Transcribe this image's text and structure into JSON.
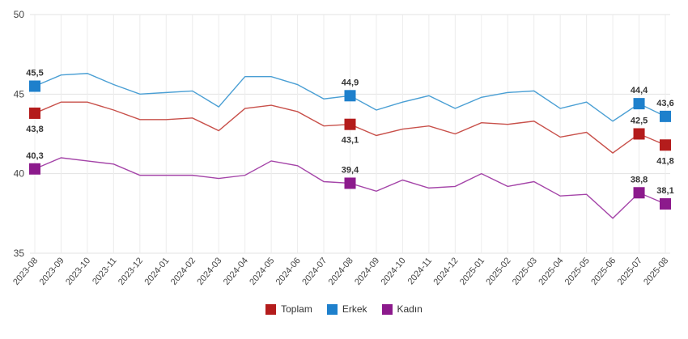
{
  "chart_data": {
    "type": "line",
    "categories": [
      "2023-08",
      "2023-09",
      "2023-10",
      "2023-11",
      "2023-12",
      "2024-01",
      "2024-02",
      "2024-03",
      "2024-04",
      "2024-05",
      "2024-06",
      "2024-07",
      "2024-08",
      "2024-09",
      "2024-10",
      "2024-11",
      "2024-12",
      "2025-01",
      "2025-02",
      "2025-03",
      "2025-04",
      "2025-05",
      "2025-06",
      "2025-07",
      "2025-08"
    ],
    "ylim": [
      35,
      50
    ],
    "yticks": [
      "35",
      "40",
      "45",
      "50"
    ],
    "grid": true,
    "legend_position": "bottom",
    "series": [
      {
        "name": "Toplam",
        "line_color": "#c8504a",
        "marker_color": "#b41c1c",
        "values": [
          43.8,
          44.5,
          44.5,
          44.0,
          43.4,
          43.4,
          43.5,
          42.7,
          44.1,
          44.3,
          43.9,
          43.0,
          43.1,
          42.4,
          42.8,
          43.0,
          42.5,
          43.2,
          43.1,
          43.3,
          42.3,
          42.6,
          41.3,
          42.5,
          41.8
        ],
        "labels": {
          "0": "43,8",
          "12": "43,1",
          "23": "42,5",
          "24": "41,8"
        },
        "label_below": {
          "0": true,
          "12": true,
          "23": false,
          "24": true
        }
      },
      {
        "name": "Erkek",
        "line_color": "#4a9fd4",
        "marker_color": "#1e80cc",
        "values": [
          45.5,
          46.2,
          46.3,
          45.6,
          45.0,
          45.1,
          45.2,
          44.2,
          46.1,
          46.1,
          45.6,
          44.7,
          44.9,
          44.0,
          44.5,
          44.9,
          44.1,
          44.8,
          45.1,
          45.2,
          44.1,
          44.5,
          43.3,
          44.4,
          43.6
        ],
        "labels": {
          "0": "45,5",
          "12": "44,9",
          "23": "44,4",
          "24": "43,6"
        },
        "label_below": {
          "0": false,
          "12": false,
          "23": false,
          "24": false
        }
      },
      {
        "name": "Kadın",
        "line_color": "#a444a8",
        "marker_color": "#8c1a8c",
        "values": [
          40.3,
          41.0,
          40.8,
          40.6,
          39.9,
          39.9,
          39.9,
          39.7,
          39.9,
          40.8,
          40.5,
          39.5,
          39.4,
          38.9,
          39.6,
          39.1,
          39.2,
          40.0,
          39.2,
          39.5,
          38.6,
          38.7,
          37.2,
          38.8,
          38.1
        ],
        "labels": {
          "0": "40,3",
          "12": "39,4",
          "23": "38,8",
          "24": "38,1"
        },
        "label_below": {
          "0": false,
          "12": false,
          "23": false,
          "24": false
        }
      }
    ]
  }
}
